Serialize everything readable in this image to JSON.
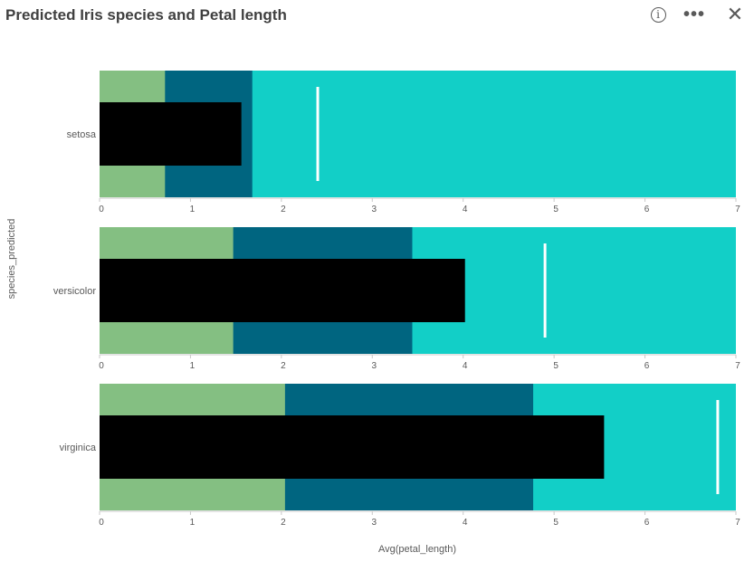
{
  "header": {
    "title": "Predicted Iris species and Petal length",
    "info_icon": "info-icon",
    "more_icon": "more-horizontal-icon",
    "close_icon": "close-icon"
  },
  "chart_data": {
    "type": "bullet",
    "title": "Predicted Iris species and Petal length",
    "ylabel": "species_predicted",
    "xlabel": "Avg(petal_length)",
    "xlim": [
      0,
      7
    ],
    "xticks": [
      0,
      1,
      2,
      3,
      4,
      5,
      6,
      7
    ],
    "range_colors": [
      "#84bf82",
      "#006580",
      "#12cfc7"
    ],
    "bar_color": "#000000",
    "marker_color": "#ffffff",
    "categories": [
      "setosa",
      "versicolor",
      "virginica"
    ],
    "rows": [
      {
        "label": "setosa",
        "value": 1.56,
        "ranges": [
          0.72,
          1.68,
          7.0
        ],
        "marker": 2.4
      },
      {
        "label": "versicolor",
        "value": 4.02,
        "ranges": [
          1.47,
          3.44,
          7.0
        ],
        "marker": 4.9
      },
      {
        "label": "virginica",
        "value": 5.55,
        "ranges": [
          2.04,
          4.77,
          7.0
        ],
        "marker": 6.8
      }
    ]
  }
}
